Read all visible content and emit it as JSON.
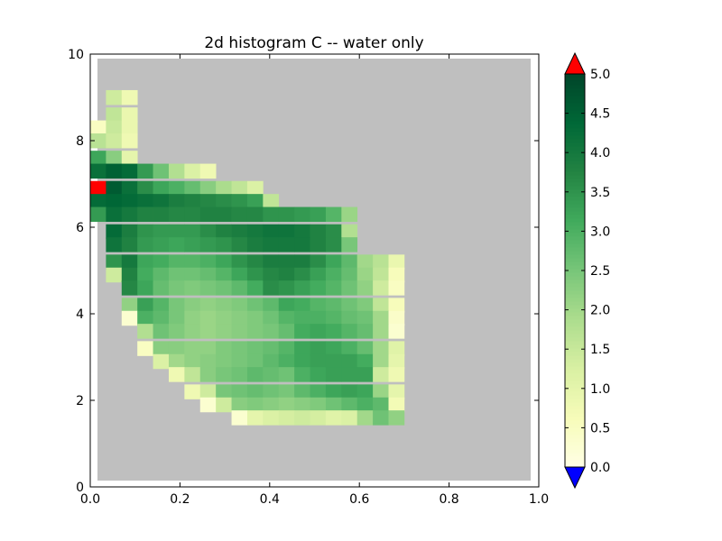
{
  "chart_data": {
    "type": "heatmap",
    "title": "2d histogram C -- water only",
    "xlabel": "",
    "ylabel": "",
    "xlim": [
      0,
      1.0
    ],
    "ylim": [
      0,
      10
    ],
    "x_ticks": [
      "0.0",
      "0.2",
      "0.4",
      "0.6",
      "0.8",
      "1.0"
    ],
    "y_ticks": [
      "0",
      "2",
      "4",
      "6",
      "8",
      "10"
    ],
    "bin_width_x": 0.0349,
    "bin_height_y": 0.335,
    "x_first_bin_left": 0.0,
    "y_first_bin_bottom": 0.1,
    "grid": false,
    "colormap": {
      "name": "YlGn",
      "stops": [
        "#ffffe5",
        "#f7fcb9",
        "#d9f0a3",
        "#addd8e",
        "#78c679",
        "#41ab5d",
        "#238443",
        "#006837",
        "#004529"
      ],
      "under_color": "#0000ff",
      "over_color": "#ff0000",
      "background_color": "#bfbfbf"
    },
    "colorbar": {
      "range": [
        0.0,
        5.0
      ],
      "ticks": [
        "0.0",
        "0.5",
        "1.0",
        "1.5",
        "2.0",
        "2.5",
        "3.0",
        "3.5",
        "4.0",
        "4.5",
        "5.0"
      ],
      "extend": "both"
    },
    "rows_top_down": [
      {
        "y": 9.0,
        "cells": [
          [
            0.035,
            1.4
          ],
          [
            0.07,
            0.8
          ]
        ]
      },
      {
        "y": 8.6,
        "cells": [
          [
            0.035,
            1.6
          ],
          [
            0.07,
            0.9
          ]
        ]
      },
      {
        "y": 8.3,
        "cells": [
          [
            0.0,
            0.5
          ],
          [
            0.035,
            1.5
          ],
          [
            0.07,
            0.9
          ]
        ]
      },
      {
        "y": 8.0,
        "cells": [
          [
            0.0,
            1.7
          ],
          [
            0.035,
            1.4
          ],
          [
            0.07,
            0.8
          ]
        ]
      },
      {
        "y": 7.6,
        "cells": [
          [
            0.0,
            3.2
          ],
          [
            0.035,
            2.3
          ],
          [
            0.07,
            1.0
          ]
        ]
      },
      {
        "y": 7.3,
        "cells": [
          [
            0.0,
            4.2
          ],
          [
            0.035,
            4.5
          ],
          [
            0.07,
            4.3
          ],
          [
            0.105,
            3.4
          ],
          [
            0.14,
            2.6
          ],
          [
            0.175,
            1.8
          ],
          [
            0.21,
            1.2
          ],
          [
            0.245,
            0.8
          ]
        ]
      },
      {
        "y": 6.9,
        "cells": [
          [
            0.0,
            5.6
          ],
          [
            0.035,
            4.6
          ],
          [
            0.07,
            4.2
          ],
          [
            0.105,
            3.6
          ],
          [
            0.14,
            3.2
          ],
          [
            0.175,
            3.0
          ],
          [
            0.21,
            2.7
          ],
          [
            0.245,
            2.3
          ],
          [
            0.28,
            1.9
          ],
          [
            0.315,
            1.6
          ],
          [
            0.35,
            1.2
          ]
        ]
      },
      {
        "y": 6.6,
        "cells": [
          [
            0.0,
            4.3
          ],
          [
            0.035,
            4.4
          ],
          [
            0.07,
            4.3
          ],
          [
            0.105,
            4.2
          ],
          [
            0.14,
            4.1
          ],
          [
            0.175,
            3.9
          ],
          [
            0.21,
            3.8
          ],
          [
            0.245,
            3.7
          ],
          [
            0.28,
            3.6
          ],
          [
            0.315,
            3.5
          ],
          [
            0.35,
            3.3
          ],
          [
            0.385,
            1.6
          ]
        ]
      },
      {
        "y": 6.3,
        "cells": [
          [
            0.0,
            3.4
          ],
          [
            0.035,
            4.2
          ],
          [
            0.07,
            4.0
          ],
          [
            0.105,
            3.8
          ],
          [
            0.14,
            3.8
          ],
          [
            0.175,
            3.7
          ],
          [
            0.21,
            3.7
          ],
          [
            0.245,
            3.8
          ],
          [
            0.28,
            3.8
          ],
          [
            0.315,
            3.7
          ],
          [
            0.35,
            3.7
          ],
          [
            0.385,
            3.5
          ],
          [
            0.42,
            3.5
          ],
          [
            0.455,
            3.4
          ],
          [
            0.49,
            3.3
          ],
          [
            0.525,
            2.9
          ],
          [
            0.56,
            2.1
          ]
        ]
      },
      {
        "y": 5.9,
        "cells": [
          [
            0.035,
            4.3
          ],
          [
            0.07,
            3.9
          ],
          [
            0.105,
            3.5
          ],
          [
            0.14,
            3.4
          ],
          [
            0.175,
            3.4
          ],
          [
            0.21,
            3.4
          ],
          [
            0.245,
            3.6
          ],
          [
            0.28,
            3.8
          ],
          [
            0.315,
            3.9
          ],
          [
            0.35,
            4.0
          ],
          [
            0.385,
            4.1
          ],
          [
            0.42,
            4.1
          ],
          [
            0.455,
            4.0
          ],
          [
            0.49,
            3.8
          ],
          [
            0.525,
            3.6
          ],
          [
            0.56,
            1.8
          ]
        ]
      },
      {
        "y": 5.6,
        "cells": [
          [
            0.035,
            4.1
          ],
          [
            0.07,
            3.8
          ],
          [
            0.105,
            3.4
          ],
          [
            0.14,
            3.3
          ],
          [
            0.175,
            3.2
          ],
          [
            0.21,
            3.3
          ],
          [
            0.245,
            3.4
          ],
          [
            0.28,
            3.5
          ],
          [
            0.315,
            3.7
          ],
          [
            0.35,
            3.9
          ],
          [
            0.385,
            4.0
          ],
          [
            0.42,
            4.0
          ],
          [
            0.455,
            4.0
          ],
          [
            0.49,
            3.8
          ],
          [
            0.525,
            3.6
          ],
          [
            0.56,
            2.5
          ]
        ]
      },
      {
        "y": 5.2,
        "cells": [
          [
            0.035,
            3.5
          ],
          [
            0.07,
            4.0
          ],
          [
            0.105,
            3.2
          ],
          [
            0.14,
            3.1
          ],
          [
            0.175,
            2.9
          ],
          [
            0.21,
            2.9
          ],
          [
            0.245,
            3.0
          ],
          [
            0.28,
            3.2
          ],
          [
            0.315,
            3.5
          ],
          [
            0.35,
            3.7
          ],
          [
            0.385,
            3.9
          ],
          [
            0.42,
            3.9
          ],
          [
            0.455,
            3.9
          ],
          [
            0.49,
            3.6
          ],
          [
            0.525,
            3.2
          ],
          [
            0.56,
            2.8
          ],
          [
            0.595,
            2.0
          ],
          [
            0.63,
            1.7
          ],
          [
            0.665,
            0.9
          ]
        ]
      },
      {
        "y": 4.9,
        "cells": [
          [
            0.035,
            1.4
          ],
          [
            0.07,
            3.8
          ],
          [
            0.105,
            3.1
          ],
          [
            0.14,
            2.8
          ],
          [
            0.175,
            2.6
          ],
          [
            0.21,
            2.6
          ],
          [
            0.245,
            2.7
          ],
          [
            0.28,
            2.9
          ],
          [
            0.315,
            3.2
          ],
          [
            0.35,
            3.5
          ],
          [
            0.385,
            3.7
          ],
          [
            0.42,
            3.8
          ],
          [
            0.455,
            3.6
          ],
          [
            0.49,
            3.3
          ],
          [
            0.525,
            3.0
          ],
          [
            0.56,
            2.7
          ],
          [
            0.595,
            2.1
          ],
          [
            0.63,
            1.6
          ],
          [
            0.665,
            0.6
          ]
        ]
      },
      {
        "y": 4.6,
        "cells": [
          [
            0.07,
            3.7
          ],
          [
            0.105,
            3.2
          ],
          [
            0.14,
            2.7
          ],
          [
            0.175,
            2.5
          ],
          [
            0.21,
            2.4
          ],
          [
            0.245,
            2.5
          ],
          [
            0.28,
            2.6
          ],
          [
            0.315,
            2.8
          ],
          [
            0.35,
            3.1
          ],
          [
            0.385,
            3.6
          ],
          [
            0.42,
            3.5
          ],
          [
            0.455,
            3.3
          ],
          [
            0.49,
            3.1
          ],
          [
            0.525,
            2.9
          ],
          [
            0.56,
            2.6
          ],
          [
            0.595,
            2.2
          ],
          [
            0.63,
            1.4
          ],
          [
            0.665,
            0.5
          ]
        ]
      },
      {
        "y": 4.2,
        "cells": [
          [
            0.07,
            2.2
          ],
          [
            0.105,
            3.3
          ],
          [
            0.14,
            2.9
          ],
          [
            0.175,
            2.5
          ],
          [
            0.21,
            2.3
          ],
          [
            0.245,
            2.2
          ],
          [
            0.28,
            2.3
          ],
          [
            0.315,
            2.4
          ],
          [
            0.35,
            2.6
          ],
          [
            0.385,
            2.8
          ],
          [
            0.42,
            3.2
          ],
          [
            0.455,
            3.1
          ],
          [
            0.49,
            2.9
          ],
          [
            0.525,
            2.8
          ],
          [
            0.56,
            2.6
          ],
          [
            0.595,
            2.4
          ],
          [
            0.63,
            1.6
          ],
          [
            0.665,
            0.6
          ]
        ]
      },
      {
        "y": 3.9,
        "cells": [
          [
            0.07,
            0.3
          ],
          [
            0.105,
            3.0
          ],
          [
            0.14,
            2.8
          ],
          [
            0.175,
            2.5
          ],
          [
            0.21,
            2.2
          ],
          [
            0.245,
            2.1
          ],
          [
            0.28,
            2.2
          ],
          [
            0.315,
            2.3
          ],
          [
            0.35,
            2.4
          ],
          [
            0.385,
            2.6
          ],
          [
            0.42,
            2.9
          ],
          [
            0.455,
            3.0
          ],
          [
            0.49,
            3.0
          ],
          [
            0.525,
            2.9
          ],
          [
            0.56,
            2.7
          ],
          [
            0.595,
            2.6
          ],
          [
            0.63,
            2.0
          ],
          [
            0.665,
            0.4
          ]
        ]
      },
      {
        "y": 3.6,
        "cells": [
          [
            0.105,
            1.8
          ],
          [
            0.14,
            2.6
          ],
          [
            0.175,
            2.4
          ],
          [
            0.21,
            2.2
          ],
          [
            0.245,
            2.1
          ],
          [
            0.28,
            2.2
          ],
          [
            0.315,
            2.3
          ],
          [
            0.35,
            2.4
          ],
          [
            0.385,
            2.5
          ],
          [
            0.42,
            2.7
          ],
          [
            0.455,
            3.1
          ],
          [
            0.49,
            3.2
          ],
          [
            0.525,
            3.1
          ],
          [
            0.56,
            2.9
          ],
          [
            0.595,
            2.7
          ],
          [
            0.63,
            2.0
          ],
          [
            0.665,
            0.3
          ]
        ]
      },
      {
        "y": 3.2,
        "cells": [
          [
            0.105,
            0.5
          ],
          [
            0.14,
            2.3
          ],
          [
            0.175,
            2.3
          ],
          [
            0.21,
            2.2
          ],
          [
            0.245,
            2.2
          ],
          [
            0.28,
            2.4
          ],
          [
            0.315,
            2.5
          ],
          [
            0.35,
            2.6
          ],
          [
            0.385,
            2.7
          ],
          [
            0.42,
            2.9
          ],
          [
            0.455,
            3.2
          ],
          [
            0.49,
            3.3
          ],
          [
            0.525,
            3.2
          ],
          [
            0.56,
            3.0
          ],
          [
            0.595,
            2.7
          ],
          [
            0.63,
            2.0
          ],
          [
            0.665,
            1.1
          ]
        ]
      },
      {
        "y": 2.9,
        "cells": [
          [
            0.14,
            1.2
          ],
          [
            0.175,
            2.0
          ],
          [
            0.21,
            2.2
          ],
          [
            0.245,
            2.3
          ],
          [
            0.28,
            2.4
          ],
          [
            0.315,
            2.5
          ],
          [
            0.35,
            2.6
          ],
          [
            0.385,
            2.8
          ],
          [
            0.42,
            3.0
          ],
          [
            0.455,
            3.2
          ],
          [
            0.49,
            3.3
          ],
          [
            0.525,
            3.3
          ],
          [
            0.56,
            3.3
          ],
          [
            0.595,
            3.1
          ],
          [
            0.63,
            2.0
          ],
          [
            0.665,
            1.0
          ]
        ]
      },
      {
        "y": 2.6,
        "cells": [
          [
            0.175,
            0.8
          ],
          [
            0.21,
            1.6
          ],
          [
            0.245,
            2.3
          ],
          [
            0.28,
            2.5
          ],
          [
            0.315,
            2.6
          ],
          [
            0.35,
            2.8
          ],
          [
            0.385,
            2.7
          ],
          [
            0.42,
            2.6
          ],
          [
            0.455,
            3.0
          ],
          [
            0.49,
            3.2
          ],
          [
            0.525,
            3.3
          ],
          [
            0.56,
            3.3
          ],
          [
            0.595,
            3.3
          ],
          [
            0.63,
            1.4
          ],
          [
            0.665,
            0.8
          ]
        ]
      },
      {
        "y": 2.2,
        "cells": [
          [
            0.21,
            0.8
          ],
          [
            0.245,
            1.4
          ],
          [
            0.28,
            2.5
          ],
          [
            0.315,
            2.6
          ],
          [
            0.35,
            2.7
          ],
          [
            0.385,
            2.6
          ],
          [
            0.42,
            2.5
          ],
          [
            0.455,
            2.8
          ],
          [
            0.49,
            3.0
          ],
          [
            0.525,
            3.2
          ],
          [
            0.56,
            3.3
          ],
          [
            0.595,
            3.2
          ],
          [
            0.63,
            2.1
          ],
          [
            0.665,
            1.0
          ]
        ]
      },
      {
        "y": 1.9,
        "cells": [
          [
            0.245,
            0.3
          ],
          [
            0.28,
            1.4
          ],
          [
            0.315,
            2.3
          ],
          [
            0.35,
            2.4
          ],
          [
            0.385,
            2.3
          ],
          [
            0.42,
            2.2
          ],
          [
            0.455,
            2.3
          ],
          [
            0.49,
            2.4
          ],
          [
            0.525,
            2.6
          ],
          [
            0.56,
            2.8
          ],
          [
            0.595,
            3.0
          ],
          [
            0.63,
            2.8
          ],
          [
            0.665,
            0.7
          ]
        ]
      },
      {
        "y": 1.6,
        "cells": [
          [
            0.315,
            0.3
          ],
          [
            0.35,
            1.0
          ],
          [
            0.385,
            1.2
          ],
          [
            0.42,
            1.3
          ],
          [
            0.455,
            1.4
          ],
          [
            0.49,
            1.3
          ],
          [
            0.525,
            1.1
          ],
          [
            0.56,
            1.2
          ],
          [
            0.595,
            2.0
          ],
          [
            0.63,
            2.6
          ],
          [
            0.665,
            2.2
          ]
        ]
      }
    ]
  }
}
